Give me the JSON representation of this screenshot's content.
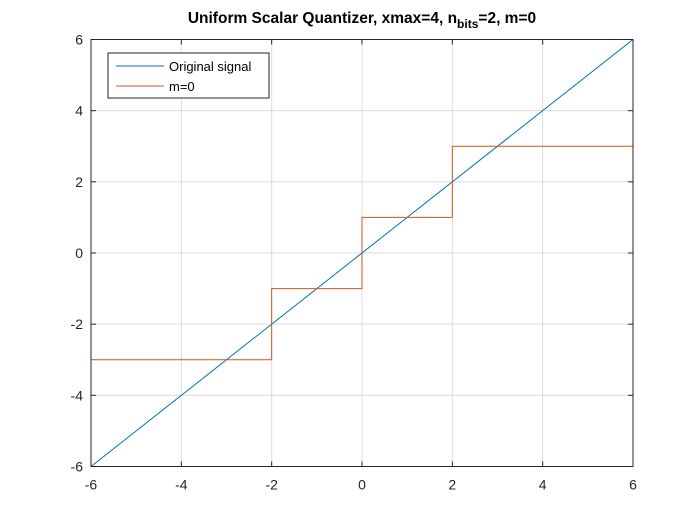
{
  "chart_data": {
    "type": "line",
    "title": {
      "prefix": "Uniform Scalar Quantizer, xmax=4, n",
      "subscript": "bits",
      "suffix": "=2, m=0"
    },
    "xlabel": "",
    "ylabel": "",
    "xlim": [
      -6,
      6
    ],
    "ylim": [
      -6,
      6
    ],
    "xticks": [
      -6,
      -4,
      -2,
      0,
      2,
      4,
      6
    ],
    "yticks": [
      -6,
      -4,
      -2,
      0,
      2,
      4,
      6
    ],
    "grid": true,
    "legend_location": "top-left",
    "series": [
      {
        "name": "Original signal",
        "color": "#0072BD",
        "style": "line",
        "x": [
          -6,
          6
        ],
        "y": [
          -6,
          6
        ]
      },
      {
        "name": "m=0",
        "color": "#D95319",
        "style": "step",
        "x": [
          -6,
          -2,
          -2,
          0,
          0,
          2,
          2,
          6
        ],
        "y": [
          -3,
          -3,
          -1,
          -1,
          1,
          1,
          3,
          3
        ]
      }
    ]
  }
}
